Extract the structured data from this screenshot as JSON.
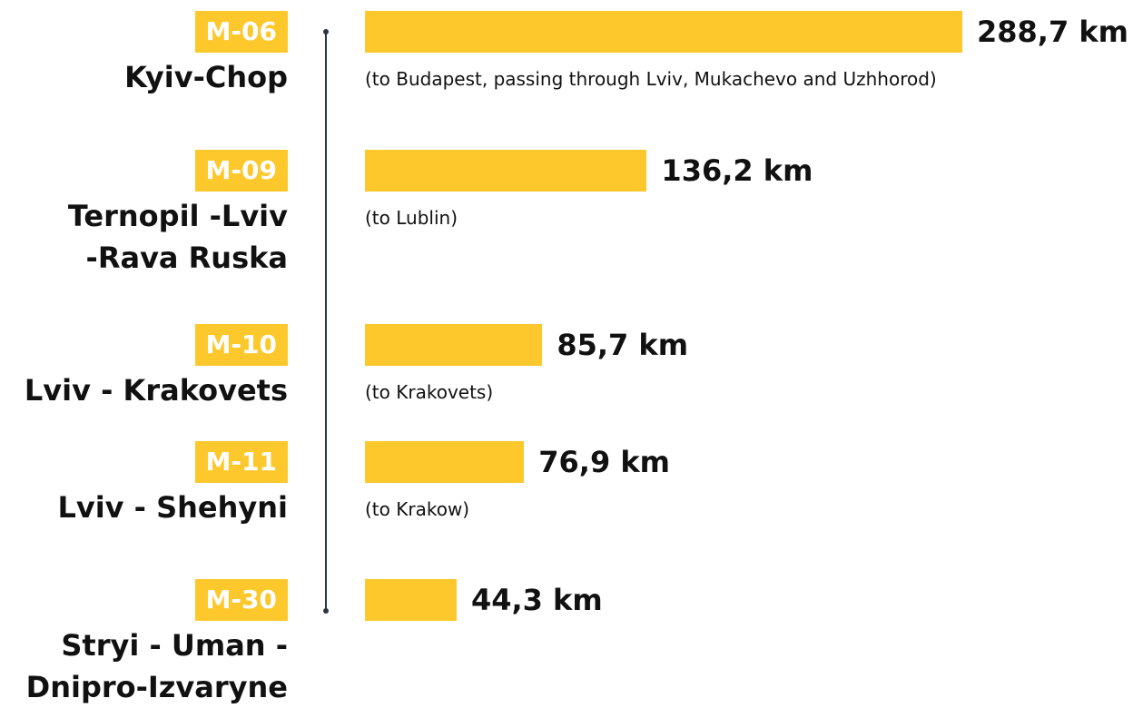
{
  "chart_data": {
    "type": "bar",
    "orientation": "horizontal",
    "color": "#fdc82b",
    "codes": [
      "M-06",
      "M-09",
      "M-10",
      "M-11",
      "M-30"
    ],
    "categories": [
      "Kyiv-Chop",
      "Ternopil -Lviv\n-Rava Ruska",
      "Lviv - Krakovets",
      "Lviv - Shehyni",
      "Stryi - Uman -\nDnipro-Izvaryne"
    ],
    "values": [
      288.7,
      136.2,
      85.7,
      76.9,
      44.3
    ],
    "value_labels": [
      "288,7 km",
      "136,2 km",
      "85,7 km",
      "76,9 km",
      "44,3 km"
    ],
    "notes": [
      "(to Budapest, passing through Lviv, Mukachevo and Uzhhorod)",
      "(to Lublin)",
      "(to Krakovets)",
      "(to Krakow)",
      null
    ]
  }
}
